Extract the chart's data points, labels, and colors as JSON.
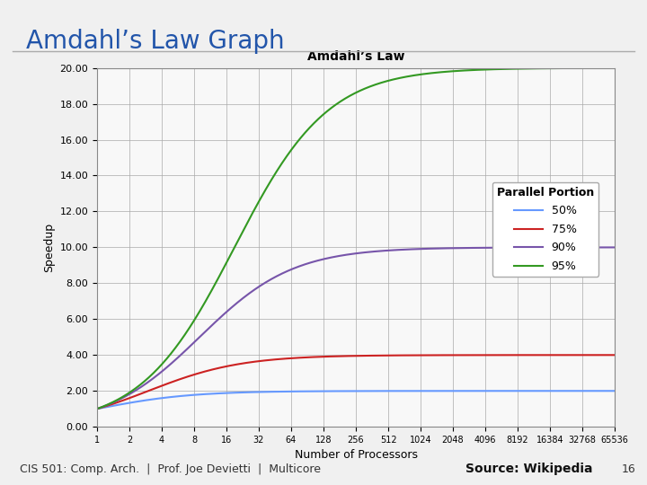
{
  "title": "Amdahl’s Law Graph",
  "chart_title": "Amdahl’s Law",
  "xlabel": "Number of Processors",
  "ylabel": "Speedup",
  "parallel_portions": [
    0.5,
    0.75,
    0.9,
    0.95
  ],
  "legend_labels": [
    "50%",
    "75%",
    "90%",
    "95%"
  ],
  "line_colors": [
    "#6699ff",
    "#cc2222",
    "#7755aa",
    "#339922"
  ],
  "ylim": [
    0,
    20
  ],
  "yticks": [
    0.0,
    2.0,
    4.0,
    6.0,
    8.0,
    10.0,
    12.0,
    14.0,
    16.0,
    18.0,
    20.0
  ],
  "xtick_labels": [
    "1",
    "2",
    "4",
    "8",
    "16",
    "32",
    "64",
    "128",
    "256",
    "512",
    "1024",
    "2048",
    "4096",
    "8192",
    "16384",
    "32768",
    "65536"
  ],
  "footer_left": "CIS 501: Comp. Arch.  |  Prof. Joe Devietti  |  Multicore",
  "footer_right": "Source: Wikipedia",
  "footer_num": "16",
  "title_color": "#2255aa",
  "bg_color": "#f0f0f0",
  "chart_bg": "#f8f8f8"
}
